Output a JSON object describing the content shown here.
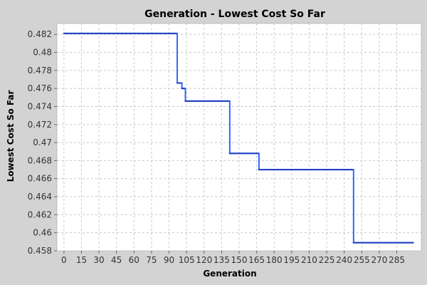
{
  "chart_data": {
    "type": "line",
    "title": "Generation - Lowest Cost So Far",
    "xlabel": "Generation",
    "ylabel": "Lowest Cost So Far",
    "xlim": [
      -6,
      306
    ],
    "ylim": [
      0.458,
      0.4832
    ],
    "x_ticks": [
      "0",
      "15",
      "30",
      "45",
      "60",
      "75",
      "90",
      "105",
      "120",
      "135",
      "150",
      "165",
      "180",
      "195",
      "210",
      "225",
      "240",
      "255",
      "270",
      "285"
    ],
    "y_ticks": [
      "0.458",
      "0.46",
      "0.462",
      "0.464",
      "0.466",
      "0.468",
      "0.47",
      "0.472",
      "0.474",
      "0.476",
      "0.478",
      "0.48",
      "0.482"
    ],
    "grid": true,
    "legend": false,
    "colors": {
      "series": "#3366ff",
      "plot_bg": "#ffffff",
      "grid": "#c8c8c8",
      "page_bg": "#d3d3d3"
    },
    "series": [
      {
        "x": [
          0,
          97,
          97,
          101,
          101,
          104,
          104,
          142,
          142,
          167,
          167,
          248,
          248,
          299
        ],
        "values": [
          0.4821,
          0.4821,
          0.4766,
          0.4766,
          0.476,
          0.476,
          0.4746,
          0.4746,
          0.4688,
          0.4688,
          0.467,
          0.467,
          0.4589,
          0.4589
        ]
      }
    ]
  }
}
